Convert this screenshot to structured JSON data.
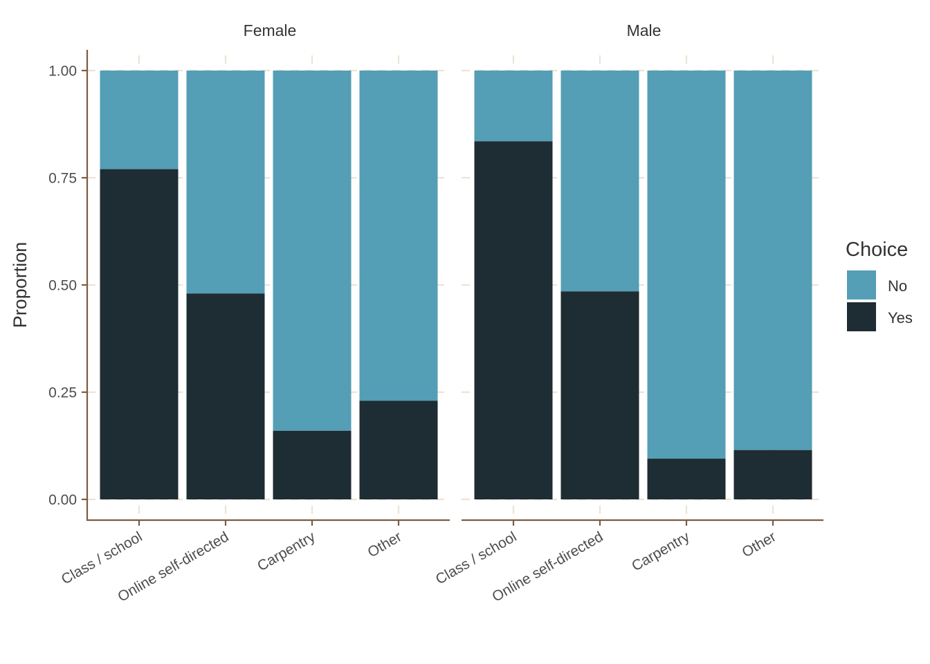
{
  "chart_data": {
    "type": "bar",
    "stacked": true,
    "ylabel": "Proportion",
    "xlabel": "",
    "ylim": [
      0,
      1
    ],
    "yticks": [
      "0.00",
      "0.25",
      "0.50",
      "0.75",
      "1.00"
    ],
    "categories": [
      "Class / school",
      "Online self-directed",
      "Carpentry",
      "Other"
    ],
    "panels": [
      {
        "name": "Female",
        "series": [
          {
            "name": "Yes",
            "values": [
              0.77,
              0.48,
              0.16,
              0.23
            ]
          },
          {
            "name": "No",
            "values": [
              0.23,
              0.52,
              0.84,
              0.77
            ]
          }
        ]
      },
      {
        "name": "Male",
        "series": [
          {
            "name": "Yes",
            "values": [
              0.835,
              0.485,
              0.095,
              0.115
            ]
          },
          {
            "name": "No",
            "values": [
              0.165,
              0.515,
              0.905,
              0.885
            ]
          }
        ]
      }
    ],
    "legend": {
      "title": "Choice",
      "position": "right",
      "items": [
        {
          "label": "No",
          "color": "#549eb6"
        },
        {
          "label": "Yes",
          "color": "#1e2c33"
        }
      ]
    },
    "colors": {
      "Yes": "#1e2c33",
      "No": "#549eb6",
      "axis": "#7a5c44",
      "grid": "#ede3d5"
    }
  }
}
